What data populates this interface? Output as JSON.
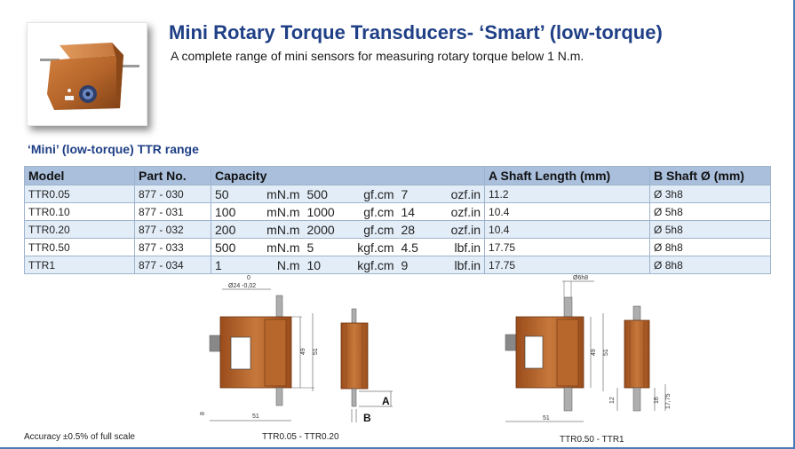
{
  "header": {
    "title": "Mini Rotary Torque Transducers- ‘Smart’ (low-torque)",
    "subtitle": "A complete range of mini sensors for measuring rotary torque below 1 N.m."
  },
  "range_title": "‘Mini’ (low-torque) TTR range",
  "table": {
    "headers": {
      "model": "Model",
      "part_no": "Part No.",
      "capacity": "Capacity",
      "shaft_length": "A Shaft Length (mm)",
      "shaft_dia": "B Shaft Ø (mm)"
    },
    "rows": [
      {
        "model": "TTR0.05",
        "part_no": "877 - 030",
        "c1": "50",
        "u1": "mN.m",
        "c2": "500",
        "u2": "gf.cm",
        "c3": "7",
        "u3": "ozf.in",
        "length": "11.2",
        "dia": "Ø 3h8"
      },
      {
        "model": "TTR0.10",
        "part_no": "877 - 031",
        "c1": "100",
        "u1": "mN.m",
        "c2": "1000",
        "u2": "gf.cm",
        "c3": "14",
        "u3": "ozf.in",
        "length": "10.4",
        "dia": "Ø 5h8"
      },
      {
        "model": "TTR0.20",
        "part_no": "877 - 032",
        "c1": "200",
        "u1": "mN.m",
        "c2": "2000",
        "u2": "gf.cm",
        "c3": "28",
        "u3": "ozf.in",
        "length": "10.4",
        "dia": "Ø 5h8"
      },
      {
        "model": "TTR0.50",
        "part_no": "877 - 033",
        "c1": "500",
        "u1": "mN.m",
        "c2": "5",
        "u2": "kgf.cm",
        "c3": "4.5",
        "u3": "lbf.in",
        "length": "17.75",
        "dia": "Ø 8h8"
      },
      {
        "model": "TTR1",
        "part_no": "877 - 034",
        "c1": "1",
        "u1": "N.m",
        "c2": "10",
        "u2": "kgf.cm",
        "c3": "9",
        "u3": "lbf.in",
        "length": "17.75",
        "dia": "Ø 8h8"
      }
    ]
  },
  "drawing_left": {
    "top_zero": "0",
    "top_dim": "Ø24 -0,02",
    "h49": "49",
    "h51": "51",
    "w51": "51",
    "d8": "8",
    "label_a": "A",
    "label_b": "B",
    "caption": "TTR0.05 - TTR0.20"
  },
  "drawing_right": {
    "top_dim": "Ø6h8",
    "h49": "49",
    "h51": "51",
    "w51": "51",
    "d12": "12",
    "d16": "16",
    "d1775": "17,75",
    "caption": "TTR0.50 - TTR1"
  },
  "colors": {
    "brand_blue": "#1f3f86",
    "header_fill": "#a9bfdc",
    "row_alt": "#e3edf8",
    "housing": "#b5652a"
  },
  "footer": {
    "accuracy": "Accuracy ±0.5% of full scale"
  }
}
